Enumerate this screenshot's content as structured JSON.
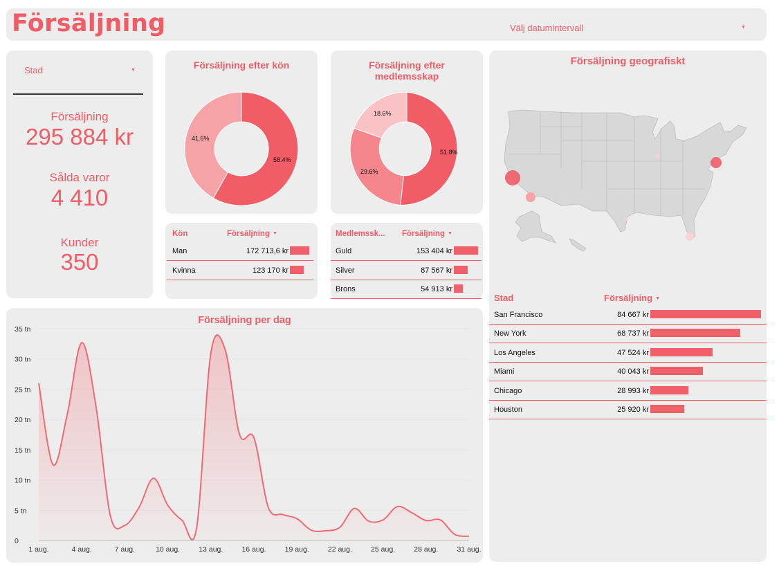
{
  "header": {
    "title": "Försäljning",
    "date_range_label": "Välj datumintervall"
  },
  "filter": {
    "city_label": "Stad"
  },
  "kpis": {
    "sales_label": "Försäljning",
    "sales_value": "295 884 kr",
    "sold_label": "Sålda varor",
    "sold_value": "4 410",
    "customers_label": "Kunder",
    "customers_value": "350"
  },
  "gender_chart": {
    "title": "Försäljning efter kön",
    "pct_female": "41.6%",
    "pct_male": "58.4%"
  },
  "member_chart": {
    "title_line1": "Försäljning efter",
    "title_line2": "medlemsskap",
    "pct_a": "18.6%",
    "pct_b": "29.6%",
    "pct_c": "51.8%"
  },
  "gender_table": {
    "col1": "Kön",
    "col2": "Försäljning",
    "rows": [
      {
        "label": "Man",
        "value": "172 713,6 kr",
        "share": 1.0
      },
      {
        "label": "Kvinna",
        "value": "123 170 kr",
        "share": 0.713
      }
    ]
  },
  "member_table": {
    "col1": "Medlemssk...",
    "col2": "Försäljning",
    "rows": [
      {
        "label": "Guld",
        "value": "153 404 kr",
        "share": 1.0
      },
      {
        "label": "Silver",
        "value": "87 567 kr",
        "share": 0.571
      },
      {
        "label": "Brons",
        "value": "54 913 kr",
        "share": 0.358
      }
    ]
  },
  "geo": {
    "title": "Försäljning geografiskt",
    "col1": "Stad",
    "col2": "Försäljning",
    "rows": [
      {
        "city": "San Francisco",
        "value": "84 667 kr",
        "share": 1.0
      },
      {
        "city": "New York",
        "value": "68 737 kr",
        "share": 0.812
      },
      {
        "city": "Los Angeles",
        "value": "47 524 kr",
        "share": 0.561
      },
      {
        "city": "Miami",
        "value": "40 043 kr",
        "share": 0.473
      },
      {
        "city": "Chicago",
        "value": "28 993 kr",
        "share": 0.342
      },
      {
        "city": "Houston",
        "value": "25 920 kr",
        "share": 0.306
      }
    ]
  },
  "colors": {
    "accent": "#f0606a",
    "accent_light": "#f6a3a8",
    "card": "#eeeded"
  },
  "chart_data": [
    {
      "type": "pie",
      "title": "Försäljning efter kön",
      "categories": [
        "Kvinna",
        "Man"
      ],
      "values": [
        41.6,
        58.4
      ]
    },
    {
      "type": "pie",
      "title": "Försäljning efter medlemsskap",
      "categories": [
        "Brons",
        "Silver",
        "Guld"
      ],
      "values": [
        18.6,
        29.6,
        51.8
      ]
    },
    {
      "type": "area",
      "title": "Försäljning per dag",
      "ylim": [
        0,
        35
      ],
      "yticks": [
        "0",
        "5 tn",
        "10 tn",
        "15 tn",
        "20 tn",
        "25 tn",
        "30 tn",
        "35 tn"
      ],
      "xticks": [
        "1 aug.",
        "4 aug.",
        "7 aug.",
        "10 aug.",
        "13 aug.",
        "16 aug.",
        "19 aug.",
        "22 aug.",
        "25 aug.",
        "28 aug.",
        "31 aug."
      ],
      "x": [
        1,
        2,
        3,
        4,
        5,
        6,
        7,
        8,
        9,
        10,
        11,
        12,
        13,
        14,
        15,
        16,
        17,
        18,
        19,
        20,
        21,
        22,
        23,
        24,
        25,
        26,
        27,
        28,
        29,
        30,
        31
      ],
      "values": [
        26,
        12.5,
        21,
        32.7,
        22,
        4,
        2.5,
        5.5,
        10.3,
        5.8,
        3.3,
        2,
        31,
        31.5,
        17.5,
        17,
        5.5,
        4.3,
        3.6,
        1.7,
        1.6,
        2.2,
        5.3,
        3.2,
        3.4,
        5.6,
        4.6,
        3.3,
        3.4,
        1,
        0.7
      ]
    }
  ]
}
